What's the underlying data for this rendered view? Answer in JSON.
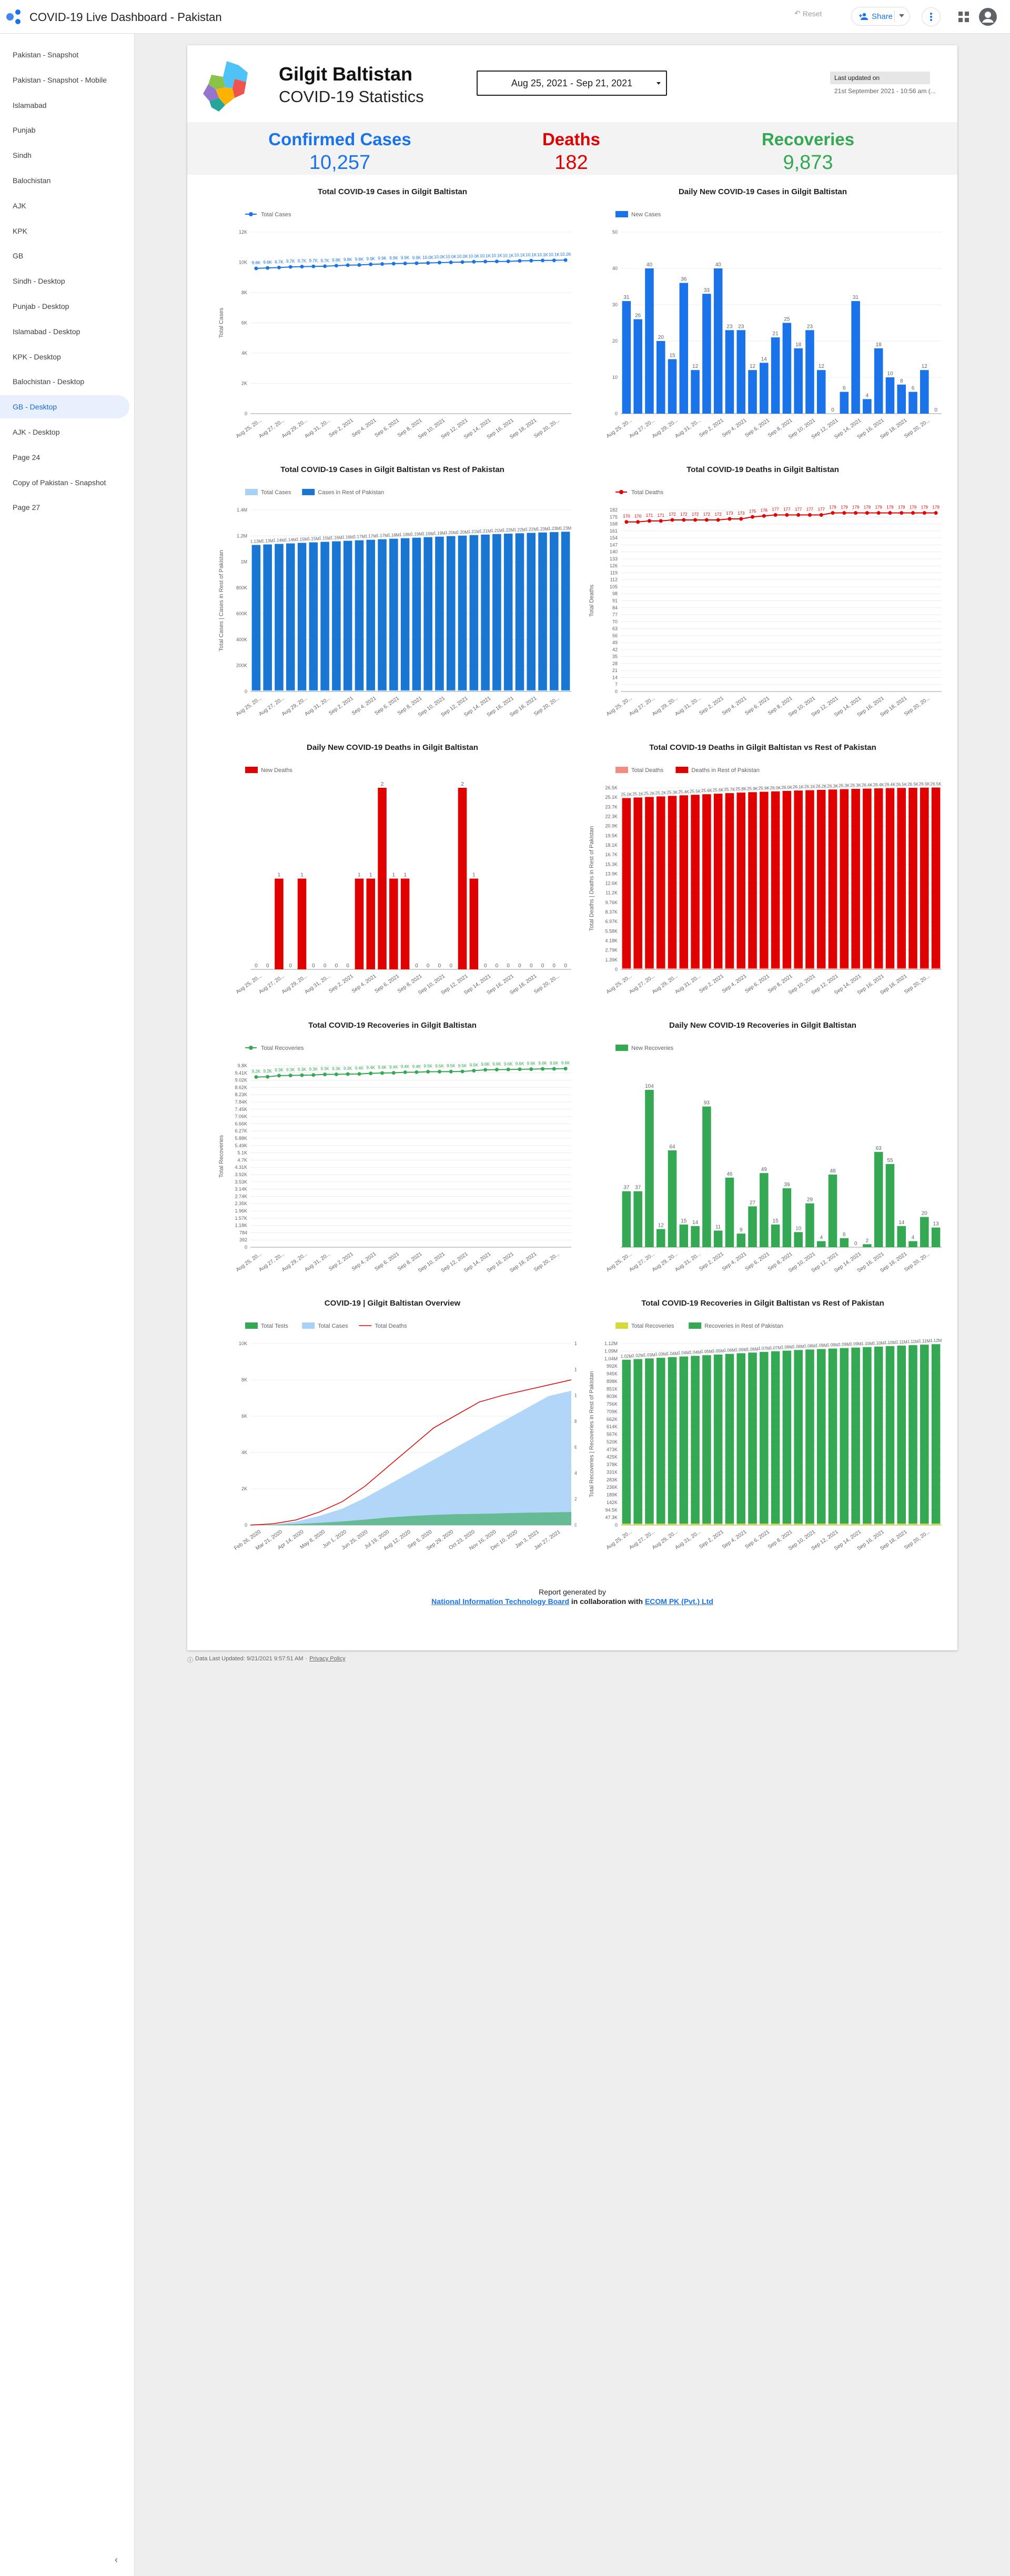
{
  "app": {
    "title": "COVID-19 Live Dashboard - Pakistan",
    "reset_label": "Reset",
    "share_label": "Share"
  },
  "sidebar": {
    "items": [
      {
        "label": "Pakistan - Snapshot",
        "active": false
      },
      {
        "label": "Pakistan - Snapshot - Mobile",
        "active": false
      },
      {
        "label": "Islamabad",
        "active": false
      },
      {
        "label": "Punjab",
        "active": false
      },
      {
        "label": "Sindh",
        "active": false
      },
      {
        "label": "Balochistan",
        "active": false
      },
      {
        "label": "AJK",
        "active": false
      },
      {
        "label": "KPK",
        "active": false
      },
      {
        "label": "GB",
        "active": false
      },
      {
        "label": "Sindh - Desktop",
        "active": false
      },
      {
        "label": "Punjab - Desktop",
        "active": false
      },
      {
        "label": "Islamabad - Desktop",
        "active": false
      },
      {
        "label": "KPK - Desktop",
        "active": false
      },
      {
        "label": "Balochistan - Desktop",
        "active": false
      },
      {
        "label": "GB - Desktop",
        "active": true
      },
      {
        "label": "AJK - Desktop",
        "active": false
      },
      {
        "label": "Page 24",
        "active": false
      },
      {
        "label": "Copy of Pakistan - Snapshot",
        "active": false
      },
      {
        "label": "Page 27",
        "active": false
      }
    ],
    "collapse_icon": "chevron-left-icon"
  },
  "header": {
    "region": "Gilgit Baltistan",
    "subtitle": "COVID-19 Statistics",
    "date_range": "Aug 25, 2021 - Sep 21, 2021",
    "updated_label": "Last updated on",
    "updated_value": "21st September 2021 - 10:56 am (..."
  },
  "stats": {
    "confirmed_label": "Confirmed Cases",
    "confirmed_value": "10,257",
    "confirmed_color": "#1a73e8",
    "deaths_label": "Deaths",
    "deaths_value": "182",
    "deaths_color": "#e00000",
    "recoveries_label": "Recoveries",
    "recoveries_value": "9,873",
    "recoveries_color": "#34a853"
  },
  "chart_data": [
    {
      "id": "total_cases",
      "type": "line",
      "title": "Total COVID-19 Cases in Gilgit Baltistan",
      "ylabel": "Total Cases",
      "ylim": [
        0,
        12000
      ],
      "yticks": [
        "0",
        "2K",
        "4K",
        "6K",
        "8K",
        "10K",
        "12K"
      ],
      "xticks": [
        "Aug 25, 20...",
        "Aug 27, 20...",
        "Aug 29, 20...",
        "Aug 31, 20...",
        "Sep 2, 2021",
        "Sep 4, 2021",
        "Sep 6, 2021",
        "Sep 8, 2021",
        "Sep 10, 2021",
        "Sep 12, 2021",
        "Sep 14, 2021",
        "Sep 16, 2021",
        "Sep 18, 2021",
        "Sep 20, 20..."
      ],
      "legend_position": "top-left",
      "series": [
        {
          "name": "Total Cases",
          "color": "#1a73e8",
          "values": [
            9600,
            9631,
            9657,
            9697,
            9717,
            9732,
            9744,
            9780,
            9812,
            9827,
            9867,
            9890,
            9913,
            9925,
            9938,
            9956,
            9981,
            9999,
            10017,
            10040,
            10052,
            10063,
            10067,
            10097,
            10114,
            10124,
            10132,
            10150
          ]
        }
      ]
    },
    {
      "id": "daily_cases",
      "type": "bar",
      "title": "Daily New COVID-19 Cases in Gilgit Baltistan",
      "ylim": [
        0,
        50
      ],
      "yticks": [
        "0",
        "10",
        "20",
        "30",
        "40",
        "50"
      ],
      "xticks": [
        "Aug 25, 20...",
        "Aug 27, 20...",
        "Aug 29, 20...",
        "Aug 31, 20...",
        "Sep 2, 2021",
        "Sep 4, 2021",
        "Sep 6, 2021",
        "Sep 8, 2021",
        "Sep 10, 2021",
        "Sep 12, 2021",
        "Sep 14, 2021",
        "Sep 16, 2021",
        "Sep 18, 2021",
        "Sep 20, 20..."
      ],
      "legend_position": "top-left",
      "series": [
        {
          "name": "New Cases",
          "color": "#1a73e8",
          "values": [
            31,
            26,
            40,
            20,
            15,
            36,
            12,
            33,
            40,
            23,
            23,
            12,
            14,
            21,
            25,
            18,
            23,
            12,
            0,
            6,
            31,
            4,
            18,
            10,
            8,
            6,
            12,
            0
          ]
        }
      ]
    },
    {
      "id": "cases_vs_rest",
      "type": "bar",
      "title": "Total COVID-19 Cases in Gilgit Baltistan vs Rest of Pakistan",
      "ylabel": "Total Cases | Cases in Rest of Pakistan",
      "ylim": [
        0,
        1400000
      ],
      "yticks": [
        "0",
        "200K",
        "400K",
        "600K",
        "800K",
        "1M",
        "1.2M",
        "1.4M"
      ],
      "xticks": [
        "Aug 25, 20...",
        "Aug 27, 20...",
        "Aug 29, 20...",
        "Aug 31, 20...",
        "Sep 2, 2021",
        "Sep 4, 2021",
        "Sep 6, 2021",
        "Sep 8, 2021",
        "Sep 10, 2021",
        "Sep 12, 2021",
        "Sep 14, 2021",
        "Sep 16, 2021",
        "Sep 18, 2021",
        "Sep 20, 20..."
      ],
      "legend_position": "top-left",
      "series": [
        {
          "name": "Total Cases",
          "color": "#a8d1f7",
          "values": [
            9600,
            9631,
            9657,
            9697,
            9717,
            9732,
            9744,
            9780,
            9812,
            9827,
            9867,
            9890,
            9913,
            9925,
            9938,
            9956,
            9981,
            9999,
            10017,
            10040,
            10052,
            10063,
            10067,
            10097,
            10114,
            10124,
            10132,
            10150
          ]
        },
        {
          "name": "Cases in Rest of Pakistan",
          "color": "#1976d2",
          "values": [
            1130000,
            1134000,
            1138000,
            1142000,
            1146000,
            1150000,
            1154000,
            1158000,
            1162000,
            1166000,
            1170000,
            1174000,
            1178000,
            1182000,
            1186000,
            1190000,
            1194000,
            1198000,
            1202000,
            1206000,
            1210000,
            1214000,
            1217000,
            1220000,
            1223000,
            1226000,
            1229000,
            1232000
          ]
        }
      ]
    },
    {
      "id": "total_deaths",
      "type": "line",
      "title": "Total COVID-19 Deaths in Gilgit Baltistan",
      "ylabel": "Total Deaths",
      "ylim": [
        0,
        182
      ],
      "yticks": [
        "0",
        "7",
        "14",
        "21",
        "28",
        "35",
        "42",
        "49",
        "56",
        "63",
        "70",
        "77",
        "84",
        "91",
        "98",
        "105",
        "112",
        "119",
        "126",
        "133",
        "140",
        "147",
        "154",
        "161",
        "168",
        "175",
        "182"
      ],
      "xticks": [
        "Aug 25, 20...",
        "Aug 27, 20...",
        "Aug 29, 20...",
        "Aug 31, 20...",
        "Sep 2, 2021",
        "Sep 4, 2021",
        "Sep 6, 2021",
        "Sep 8, 2021",
        "Sep 10, 2021",
        "Sep 12, 2021",
        "Sep 14, 2021",
        "Sep 16, 2021",
        "Sep 18, 2021",
        "Sep 20, 20..."
      ],
      "legend_position": "top-left",
      "series": [
        {
          "name": "Total Deaths",
          "color": "#e00000",
          "values": [
            170,
            170,
            171,
            171,
            172,
            172,
            172,
            172,
            172,
            173,
            173,
            175,
            176,
            177,
            177,
            177,
            177,
            177,
            179,
            179,
            179,
            179,
            179,
            179,
            179,
            179,
            179,
            179
          ]
        }
      ]
    },
    {
      "id": "daily_deaths",
      "type": "bar",
      "title": "Daily New COVID-19 Deaths in Gilgit Baltistan",
      "ylim": [
        0,
        2
      ],
      "yticks": [],
      "xticks": [
        "Aug 25, 20...",
        "Aug 27, 20...",
        "Aug 29, 20...",
        "Aug 31, 20...",
        "Sep 2, 2021",
        "Sep 4, 2021",
        "Sep 6, 2021",
        "Sep 8, 2021",
        "Sep 10, 2021",
        "Sep 12, 2021",
        "Sep 14, 2021",
        "Sep 16, 2021",
        "Sep 18, 2021",
        "Sep 20, 20..."
      ],
      "legend_position": "top-left",
      "series": [
        {
          "name": "New Deaths",
          "color": "#e00000",
          "values": [
            0,
            0,
            1,
            0,
            1,
            0,
            0,
            0,
            0,
            1,
            1,
            2,
            1,
            1,
            0,
            0,
            0,
            0,
            2,
            1,
            0,
            0,
            0,
            0,
            0,
            0,
            0,
            0
          ]
        }
      ]
    },
    {
      "id": "deaths_vs_rest",
      "type": "bar",
      "title": "Total COVID-19 Deaths in Gilgit Baltistan vs Rest of Pakistan",
      "ylabel": "Total Deaths | Deaths in Rest of Pakistan",
      "ylim": [
        0,
        26500
      ],
      "yticks": [
        "0",
        "1.39K",
        "2.79K",
        "4.18K",
        "5.58K",
        "6.97K",
        "8.37K",
        "9.76K",
        "11.2K",
        "12.6K",
        "13.9K",
        "15.3K",
        "16.7K",
        "18.1K",
        "19.5K",
        "20.9K",
        "22.3K",
        "23.7K",
        "25.1K",
        "26.5K"
      ],
      "xticks": [
        "Aug 25, 20...",
        "Aug 27, 20...",
        "Aug 29, 20...",
        "Aug 31, 20...",
        "Sep 2, 2021",
        "Sep 4, 2021",
        "Sep 6, 2021",
        "Sep 8, 2021",
        "Sep 10, 2021",
        "Sep 12, 2021",
        "Sep 14, 2021",
        "Sep 16, 2021",
        "Sep 18, 2021",
        "Sep 20, 20..."
      ],
      "legend_position": "top-left",
      "series": [
        {
          "name": "Total Deaths",
          "color": "#f28b82",
          "values": [
            170,
            170,
            171,
            171,
            172,
            172,
            172,
            172,
            172,
            173,
            173,
            175,
            176,
            177,
            177,
            177,
            177,
            177,
            179,
            179,
            179,
            179,
            179,
            179,
            179,
            179,
            179,
            179
          ]
        },
        {
          "name": "Deaths in Rest of Pakistan",
          "color": "#e00000",
          "values": [
            25000,
            25080,
            25160,
            25240,
            25320,
            25400,
            25480,
            25560,
            25640,
            25720,
            25800,
            25860,
            25920,
            25980,
            26040,
            26100,
            26150,
            26200,
            26250,
            26300,
            26340,
            26380,
            26420,
            26450,
            26480,
            26500,
            26520,
            26540
          ]
        }
      ]
    },
    {
      "id": "total_recoveries",
      "type": "line",
      "title": "Total COVID-19 Recoveries in Gilgit Baltistan",
      "ylabel": "Total Recoveries",
      "ylim": [
        0,
        9800
      ],
      "yticks": [
        "0",
        "392",
        "784",
        "1.18K",
        "1.57K",
        "1.96K",
        "2.35K",
        "2.74K",
        "3.14K",
        "3.53K",
        "3.92K",
        "4.31K",
        "4.7K",
        "5.1K",
        "5.49K",
        "5.88K",
        "6.27K",
        "6.66K",
        "7.06K",
        "7.45K",
        "7.84K",
        "8.23K",
        "8.62K",
        "9.02K",
        "9.41K",
        "9.8K"
      ],
      "xticks": [
        "Aug 25, 20...",
        "Aug 27, 20...",
        "Aug 29, 20...",
        "Aug 31, 20...",
        "Sep 2, 2021",
        "Sep 4, 2021",
        "Sep 6, 2021",
        "Sep 8, 2021",
        "Sep 10, 2021",
        "Sep 12, 2021",
        "Sep 14, 2021",
        "Sep 16, 2021",
        "Sep 18, 2021",
        "Sep 20, 20..."
      ],
      "legend_position": "top-left",
      "series": [
        {
          "name": "Total Recoveries",
          "color": "#34a853",
          "values": [
            9187,
            9199,
            9263,
            9270,
            9286,
            9297,
            9327,
            9330,
            9346,
            9354,
            9385,
            9402,
            9412,
            9444,
            9450,
            9473,
            9477,
            9481,
            9489,
            9530,
            9575,
            9588,
            9593,
            9606,
            9611,
            9626,
            9630,
            9641
          ]
        }
      ]
    },
    {
      "id": "daily_recoveries",
      "type": "bar",
      "title": "Daily New COVID-19 Recoveries in Gilgit Baltistan",
      "ylim": [
        0,
        120
      ],
      "yticks": [],
      "xticks": [
        "Aug 25, 20...",
        "Aug 27, 20...",
        "Aug 29, 20...",
        "Aug 31, 20...",
        "Sep 2, 2021",
        "Sep 4, 2021",
        "Sep 6, 2021",
        "Sep 8, 2021",
        "Sep 10, 2021",
        "Sep 12, 2021",
        "Sep 14, 2021",
        "Sep 16, 2021",
        "Sep 18, 2021",
        "Sep 20, 20..."
      ],
      "legend_position": "top-left",
      "series": [
        {
          "name": "New Recoveries",
          "color": "#34a853",
          "values": [
            37,
            37,
            104,
            12,
            64,
            15,
            14,
            93,
            11,
            46,
            9,
            27,
            49,
            15,
            39,
            10,
            29,
            4,
            48,
            6,
            0,
            2,
            63,
            55,
            14,
            4,
            20,
            13
          ]
        }
      ]
    },
    {
      "id": "overview",
      "type": "area",
      "title": "COVID-19    |    Gilgit Baltistan Overview",
      "ylabel_right": "Total Deaths",
      "ylim": [
        0,
        10000
      ],
      "yticks": [
        "0",
        "2K",
        "4K",
        "6K",
        "8K",
        "10K"
      ],
      "ylim_right": [
        0,
        140
      ],
      "yticks_right": [
        "0",
        "20",
        "40",
        "60",
        "80",
        "100",
        "120",
        "140"
      ],
      "xticks": [
        "Feb 26, 2020",
        "Mar 21, 2020",
        "Apr 14, 2020",
        "May 8, 2020",
        "Jun 1, 2020",
        "Jun 25, 2020",
        "Jul 19, 2020",
        "Aug 12, 2020",
        "Sep 5, 2020",
        "Sep 29, 2020",
        "Oct 23, 2020",
        "Nov 16, 2020",
        "Dec 10, 2020",
        "Jan 3, 2021",
        "Jan 27, 2021"
      ],
      "legend_position": "top-left",
      "series": [
        {
          "name": "Total Tests",
          "color": "#34a853",
          "values": [
            0,
            20,
            60,
            120,
            200,
            300,
            420,
            500,
            560,
            600,
            620,
            650,
            680,
            700,
            720
          ]
        },
        {
          "name": "Total Cases",
          "color": "#a8d1f7",
          "values": [
            0,
            30,
            200,
            500,
            900,
            1500,
            2200,
            2900,
            3600,
            4300,
            5000,
            5700,
            6400,
            7100,
            7400
          ]
        },
        {
          "name": "Total Deaths",
          "color": "#e00000",
          "values": [
            0,
            1,
            4,
            10,
            18,
            30,
            45,
            60,
            75,
            85,
            95,
            100,
            104,
            108,
            112
          ]
        }
      ]
    },
    {
      "id": "recoveries_vs_rest",
      "type": "bar",
      "title": "Total COVID-19 Recoveries in Gilgit Baltistan vs Rest of Pakistan",
      "ylabel": "Total Recoveries | Recoveries in Rest of Pakistan",
      "ylim": [
        0,
        1120000
      ],
      "yticks": [
        "0",
        "47.3K",
        "94.5K",
        "142K",
        "189K",
        "236K",
        "283K",
        "331K",
        "378K",
        "425K",
        "473K",
        "520K",
        "567K",
        "614K",
        "662K",
        "709K",
        "756K",
        "803K",
        "851K",
        "898K",
        "945K",
        "992K",
        "1.04M",
        "1.09M",
        "1.12M"
      ],
      "xticks": [
        "Aug 25, 20...",
        "Aug 27, 20...",
        "Aug 29, 20...",
        "Aug 31, 20...",
        "Sep 2, 2021",
        "Sep 4, 2021",
        "Sep 6, 2021",
        "Sep 8, 2021",
        "Sep 10, 2021",
        "Sep 12, 2021",
        "Sep 14, 2021",
        "Sep 16, 2021",
        "Sep 18, 2021",
        "Sep 20, 20..."
      ],
      "legend_position": "top-left",
      "series": [
        {
          "name": "Total Recoveries",
          "color": "#d4d93c",
          "values": [
            9187,
            9199,
            9263,
            9270,
            9286,
            9297,
            9327,
            9330,
            9346,
            9354,
            9385,
            9402,
            9412,
            9444,
            9450,
            9473,
            9477,
            9481,
            9489,
            9530,
            9575,
            9588,
            9593,
            9606,
            9611,
            9626,
            9630,
            9641
          ]
        },
        {
          "name": "Recoveries in Rest of Pakistan",
          "color": "#34a853",
          "values": [
            1020000,
            1024000,
            1028000,
            1032000,
            1036000,
            1040000,
            1044000,
            1048000,
            1052000,
            1056000,
            1060000,
            1064000,
            1068000,
            1072000,
            1076000,
            1080000,
            1083000,
            1086000,
            1089000,
            1092000,
            1095000,
            1098000,
            1101000,
            1104000,
            1107000,
            1110000,
            1113000,
            1116000
          ]
        }
      ]
    }
  ],
  "footer": {
    "line1": "Report generated by",
    "org1": "National Information Technology Board",
    "mid": "in collaboration with",
    "org2": "ECOM PK (Pvt.) Ltd",
    "last_updated": "Data Last Updated: 9/21/2021 9:57:51 AM",
    "privacy": "Privacy Policy"
  }
}
